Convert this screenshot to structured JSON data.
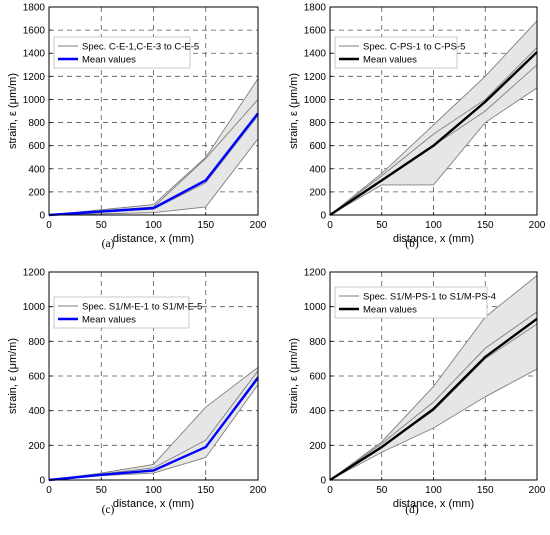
{
  "chart_data": [
    {
      "type": "line",
      "panel_label": "(a)",
      "xlabel": "distance, x (mm)",
      "ylabel": "strain, ε (μm/m)",
      "xlim": [
        0,
        200
      ],
      "ylim": [
        0,
        1800
      ],
      "xticks": [
        0,
        50,
        100,
        150,
        200
      ],
      "yticks": [
        0,
        200,
        400,
        600,
        800,
        1000,
        1200,
        1400,
        1600,
        1800
      ],
      "x": [
        0,
        100,
        150,
        200
      ],
      "grid": "dashed",
      "legend_position": "top-left",
      "series": [
        {
          "name": "Spec. C-E-1,C-E-3 to C-E-5",
          "role": "specimens",
          "color": "#808080",
          "lines": [
            [
              0,
              20,
              70,
              660
            ],
            [
              0,
              50,
              280,
              860
            ],
            [
              0,
              70,
              490,
              1000
            ],
            [
              0,
              90,
              500,
              1180
            ]
          ],
          "band_min": [
            0,
            20,
            70,
            660
          ],
          "band_max": [
            0,
            90,
            500,
            1180
          ]
        },
        {
          "name": "Mean values",
          "role": "mean",
          "color": "#0000ff",
          "values": [
            0,
            60,
            300,
            880
          ]
        }
      ]
    },
    {
      "type": "line",
      "panel_label": "(b)",
      "xlabel": "distance, x (mm)",
      "ylabel": "strain, ε (μm/m)",
      "xlim": [
        0,
        200
      ],
      "ylim": [
        0,
        1800
      ],
      "xticks": [
        0,
        50,
        100,
        150,
        200
      ],
      "yticks": [
        0,
        200,
        400,
        600,
        800,
        1000,
        1200,
        1400,
        1600,
        1800
      ],
      "x": [
        0,
        50,
        100,
        150,
        200
      ],
      "grid": "dashed",
      "legend_position": "top-left",
      "series": [
        {
          "name": "Spec. C-PS-1 to C-PS-5",
          "role": "specimens",
          "color": "#808080",
          "lines": [
            [
              0,
              260,
              260,
              800,
              1100
            ],
            [
              0,
              300,
              600,
              900,
              1300
            ],
            [
              0,
              340,
              700,
              1000,
              1450
            ],
            [
              0,
              360,
              780,
              1200,
              1680
            ]
          ],
          "band_min": [
            0,
            260,
            260,
            800,
            1100
          ],
          "band_max": [
            0,
            360,
            780,
            1200,
            1680
          ]
        },
        {
          "name": "Mean values",
          "role": "mean",
          "color": "#000000",
          "values": [
            0,
            300,
            600,
            980,
            1410
          ]
        }
      ]
    },
    {
      "type": "line",
      "panel_label": "(c)",
      "xlabel": "distance, x (mm)",
      "ylabel": "strain, ε (μm/m)",
      "xlim": [
        0,
        200
      ],
      "ylim": [
        0,
        1200
      ],
      "xticks": [
        0,
        50,
        100,
        150,
        200
      ],
      "yticks": [
        0,
        200,
        400,
        600,
        800,
        1000,
        1200
      ],
      "x": [
        0,
        50,
        100,
        150,
        200
      ],
      "grid": "dashed",
      "legend_position": "top-left",
      "series": [
        {
          "name": "Spec. S1/M-E-1 to S1/M-E-5",
          "role": "specimens",
          "color": "#808080",
          "lines": [
            [
              0,
              25,
              40,
              130,
              550
            ],
            [
              0,
              30,
              50,
              190,
              600
            ],
            [
              0,
              35,
              70,
              230,
              630
            ],
            [
              0,
              40,
              90,
              420,
              650
            ]
          ],
          "band_min": [
            0,
            25,
            40,
            130,
            550
          ],
          "band_max": [
            0,
            40,
            90,
            420,
            650
          ]
        },
        {
          "name": "Mean values",
          "role": "mean",
          "color": "#0000ff",
          "values": [
            0,
            30,
            55,
            190,
            590
          ]
        }
      ]
    },
    {
      "type": "line",
      "panel_label": "(d)",
      "xlabel": "distance, x (mm)",
      "ylabel": "strain, ε (μm/m)",
      "xlim": [
        0,
        200
      ],
      "ylim": [
        0,
        1200
      ],
      "xticks": [
        0,
        50,
        100,
        150,
        200
      ],
      "yticks": [
        0,
        200,
        400,
        600,
        800,
        1000,
        1200
      ],
      "x": [
        0,
        50,
        100,
        150,
        200
      ],
      "grid": "dashed",
      "legend_position": "top-left",
      "series": [
        {
          "name": "Spec. S1/M-PS-1 to S1/M-PS-4",
          "role": "specimens",
          "color": "#808080",
          "lines": [
            [
              0,
              160,
              300,
              480,
              640
            ],
            [
              0,
              190,
              400,
              700,
              900
            ],
            [
              0,
              210,
              450,
              760,
              970
            ],
            [
              0,
              220,
              540,
              940,
              1180
            ]
          ],
          "band_min": [
            0,
            160,
            300,
            480,
            640
          ],
          "band_max": [
            0,
            220,
            540,
            940,
            1180
          ]
        },
        {
          "name": "Mean values",
          "role": "mean",
          "color": "#000000",
          "values": [
            0,
            190,
            410,
            710,
            930
          ]
        }
      ]
    }
  ]
}
